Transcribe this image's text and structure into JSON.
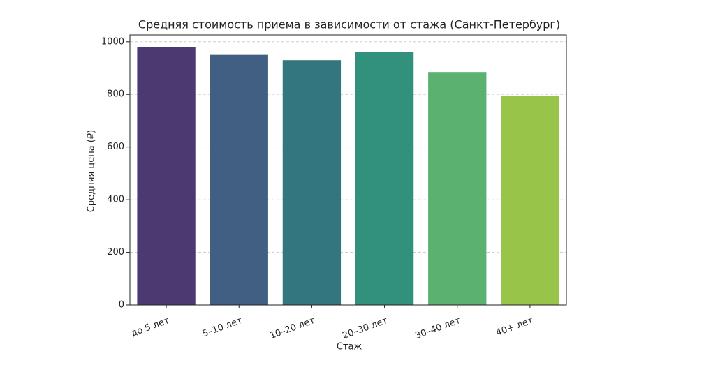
{
  "chart_data": {
    "type": "bar",
    "title": "Средняя стоимость приема в зависимости от стажа (Санкт-Петербург)",
    "x_label": "Стаж",
    "y_label": "Средняя цена (₽)",
    "categories": [
      "до 5 лет",
      "5–10 лет",
      "10–20 лет",
      "20–30 лет",
      "30–40 лет",
      "40+ лет"
    ],
    "values": [
      980,
      950,
      930,
      960,
      885,
      793
    ],
    "colors": [
      "#4b3a72",
      "#405f82",
      "#33767f",
      "#31917c",
      "#5bb170",
      "#98c44a"
    ],
    "ylim": [
      0,
      1026
    ],
    "yticks": [
      0,
      200,
      400,
      600,
      800,
      1000
    ],
    "grid": true
  }
}
